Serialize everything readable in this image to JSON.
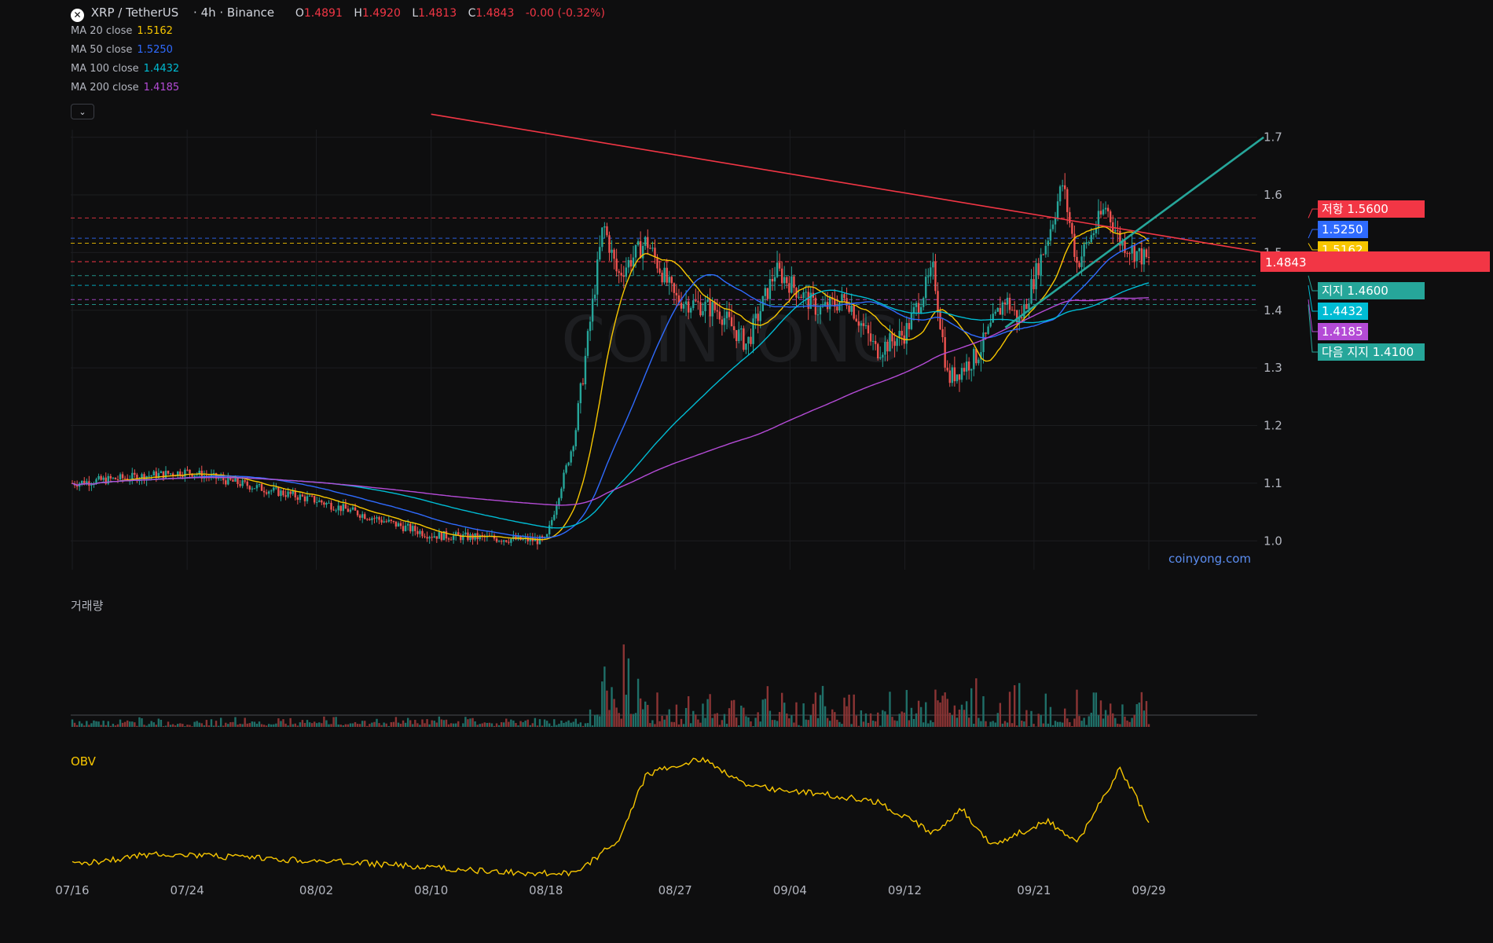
{
  "header": {
    "symbol": "XRP / TetherUS",
    "timeframe": "· 4h · Binance",
    "ohlc": {
      "o_label": "O",
      "o": "1.4891",
      "h_label": "H",
      "h": "1.4920",
      "l_label": "L",
      "l": "1.4813",
      "c_label": "C",
      "c": "1.4843",
      "change": "-0.00 (-0.32%)"
    },
    "moving_averages": [
      {
        "label": "MA 20 close",
        "value": "1.5162",
        "color": "#f7c600"
      },
      {
        "label": "MA 50 close",
        "value": "1.5250",
        "color": "#2f6bff"
      },
      {
        "label": "MA 100 close",
        "value": "1.4432",
        "color": "#00bcd4"
      },
      {
        "label": "MA 200 close",
        "value": "1.4185",
        "color": "#b44bd6"
      }
    ]
  },
  "watermark": "COINYONG",
  "site_label": "coinyong.com",
  "volume_label": "거래량",
  "obv_label": "OBV",
  "colors": {
    "up": "#26a69a",
    "down": "#ef5350",
    "resistance": "#f23645",
    "trend_up": "#26a69a",
    "obv": "#f7c600"
  },
  "chart_data": {
    "type": "line",
    "title": "",
    "xlabel": "",
    "ylabel": "",
    "ylim": [
      0.95,
      1.72
    ],
    "y_ticks": [
      "1.7",
      "1.6",
      "1.5",
      "1.4",
      "1.3",
      "1.2",
      "1.1",
      "1.0"
    ],
    "x_ticks": [
      "07/16",
      "07/24",
      "08/02",
      "08/10",
      "08/18",
      "08/27",
      "09/04",
      "09/12",
      "09/21",
      "09/29"
    ],
    "price_series": {
      "name": "",
      "knots": [
        [
          "07/16",
          1.1
        ],
        [
          "07/24",
          1.12
        ],
        [
          "08/02",
          1.07
        ],
        [
          "08/10",
          1.01
        ],
        [
          "08/18",
          1.0
        ],
        [
          "08/20",
          1.18
        ],
        [
          "08/22",
          1.55
        ],
        [
          "08/23",
          1.46
        ],
        [
          "08/25",
          1.52
        ],
        [
          "08/27",
          1.42
        ],
        [
          "08/30",
          1.4
        ],
        [
          "09/01",
          1.34
        ],
        [
          "09/03",
          1.47
        ],
        [
          "09/06",
          1.4
        ],
        [
          "09/08",
          1.42
        ],
        [
          "09/10",
          1.33
        ],
        [
          "09/12",
          1.36
        ],
        [
          "09/14",
          1.47
        ],
        [
          "09/15",
          1.28
        ],
        [
          "09/17",
          1.32
        ],
        [
          "09/19",
          1.42
        ],
        [
          "09/20",
          1.38
        ],
        [
          "09/22",
          1.53
        ],
        [
          "09/23",
          1.62
        ],
        [
          "09/24",
          1.48
        ],
        [
          "09/26",
          1.58
        ],
        [
          "09/27",
          1.52
        ],
        [
          "09/29",
          1.4843
        ]
      ]
    },
    "moving_averages": [
      {
        "name": "MA 20 close",
        "last": 1.5162
      },
      {
        "name": "MA 50 close",
        "last": 1.525
      },
      {
        "name": "MA 100 close",
        "last": 1.4432
      },
      {
        "name": "MA 200 close",
        "last": 1.4185
      }
    ],
    "resistance_trendline": {
      "from": [
        "08/10",
        1.74
      ],
      "to": [
        "10/07",
        1.5
      ]
    },
    "support_trendline": {
      "from": [
        "09/19",
        1.37
      ],
      "to": [
        "10/07",
        1.7
      ]
    },
    "horizontal_levels": [
      {
        "value": 1.56,
        "label": "저항 1.5600",
        "color": "#f23645"
      },
      {
        "value": 1.525,
        "label": "1.5250",
        "color": "#2f6bff"
      },
      {
        "value": 1.5162,
        "label": "1.5162",
        "color": "#f7c600"
      },
      {
        "value": 1.4843,
        "label": "1.4843",
        "color": "#f23645",
        "current": true
      },
      {
        "value": 1.46,
        "label": "지지 1.4600",
        "color": "#26a69a"
      },
      {
        "value": 1.4432,
        "label": "1.4432",
        "color": "#00bcd4"
      },
      {
        "value": 1.4185,
        "label": "1.4185",
        "color": "#b44bd6"
      },
      {
        "value": 1.41,
        "label": "다음 지지 1.4100",
        "color": "#26a69a"
      }
    ],
    "grid": true
  }
}
